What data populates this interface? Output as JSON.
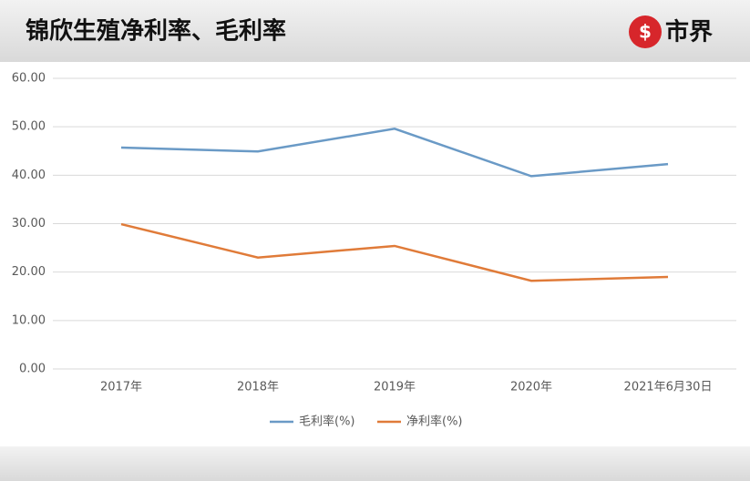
{
  "brand": "市界",
  "chart_data": {
    "type": "line",
    "title": "锦欣生殖净利率、毛利率",
    "categories": [
      "2017年",
      "2018年",
      "2019年",
      "2020年",
      "2021年6月30日"
    ],
    "series": [
      {
        "name": "毛利率(%)",
        "color": "#6a9ac6",
        "values": [
          45.7,
          44.9,
          49.6,
          39.8,
          42.3
        ]
      },
      {
        "name": "净利率(%)",
        "color": "#e07b39",
        "values": [
          29.9,
          23.0,
          25.4,
          18.2,
          19.0
        ]
      }
    ],
    "ylim": [
      0,
      60
    ],
    "yticks": [
      {
        "value": 0,
        "label": "0.00"
      },
      {
        "value": 10,
        "label": "10.00"
      },
      {
        "value": 20,
        "label": "20.00"
      },
      {
        "value": 30,
        "label": "30.00"
      },
      {
        "value": 40,
        "label": "40.00"
      },
      {
        "value": 50,
        "label": "50.00"
      },
      {
        "value": 60,
        "label": "60.00"
      }
    ],
    "grid": true,
    "legend": "bottom"
  }
}
